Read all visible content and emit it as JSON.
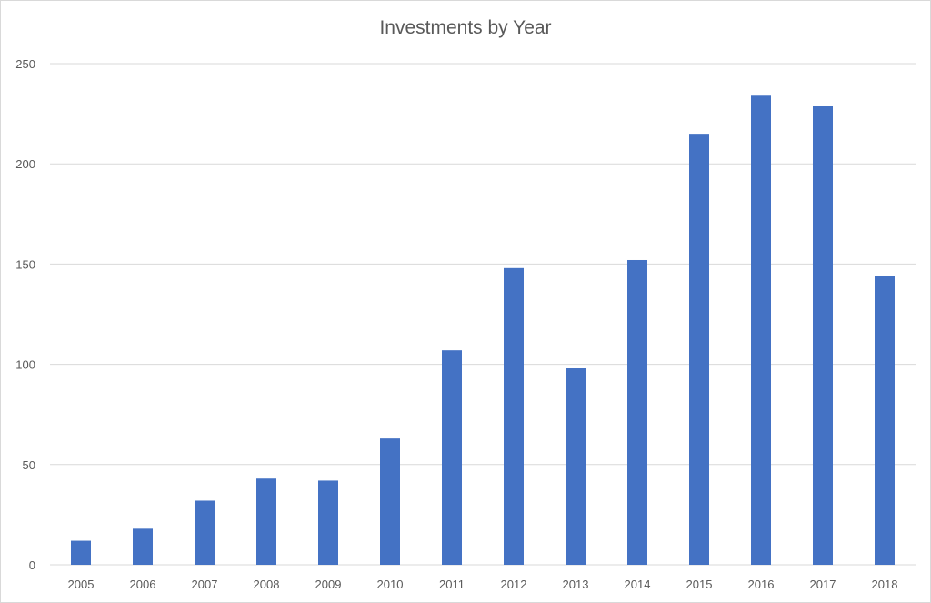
{
  "chart_data": {
    "type": "bar",
    "title": "Investments by Year",
    "xlabel": "",
    "ylabel": "",
    "categories": [
      "2005",
      "2006",
      "2007",
      "2008",
      "2009",
      "2010",
      "2011",
      "2012",
      "2013",
      "2014",
      "2015",
      "2016",
      "2017",
      "2018"
    ],
    "values": [
      12,
      18,
      32,
      43,
      42,
      63,
      107,
      148,
      98,
      152,
      215,
      234,
      229,
      144
    ],
    "ylim": [
      0,
      250
    ],
    "yticks": [
      0,
      50,
      100,
      150,
      200,
      250
    ],
    "grid": true,
    "legend": "none",
    "colors": {
      "bar": "#4472c4",
      "grid": "#d9d9d9",
      "text": "#595959"
    }
  }
}
